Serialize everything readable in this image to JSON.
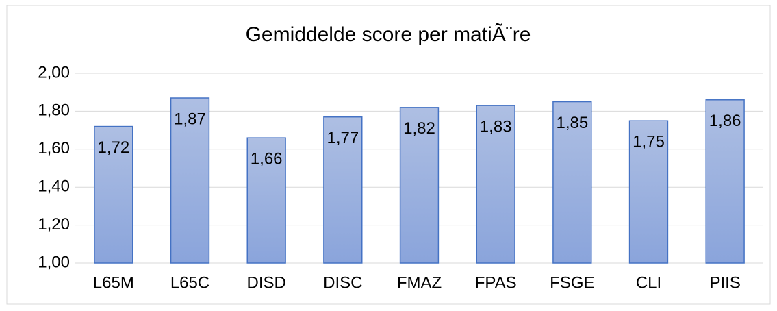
{
  "chart_data": {
    "type": "bar",
    "title": "Gemiddelde score per matiÃ¨re",
    "categories": [
      "L65M",
      "L65C",
      "DISD",
      "DISC",
      "FMAZ",
      "FPAS",
      "FSGE",
      "CLI",
      "PIIS"
    ],
    "values": [
      1.72,
      1.87,
      1.66,
      1.77,
      1.82,
      1.83,
      1.85,
      1.75,
      1.86
    ],
    "value_labels": [
      "1,72",
      "1,87",
      "1,66",
      "1,77",
      "1,82",
      "1,83",
      "1,85",
      "1,75",
      "1,86"
    ],
    "color": "#4472c4",
    "ylim": [
      1,
      2
    ],
    "yticks": [
      {
        "value": 1,
        "label": "1,00"
      },
      {
        "value": 1.2,
        "label": "1,20"
      },
      {
        "value": 1.4,
        "label": "1,40"
      },
      {
        "value": 1.6,
        "label": "1,60"
      },
      {
        "value": 1.8,
        "label": "1,80"
      },
      {
        "value": 2,
        "label": "2,00"
      }
    ],
    "grid": true
  }
}
